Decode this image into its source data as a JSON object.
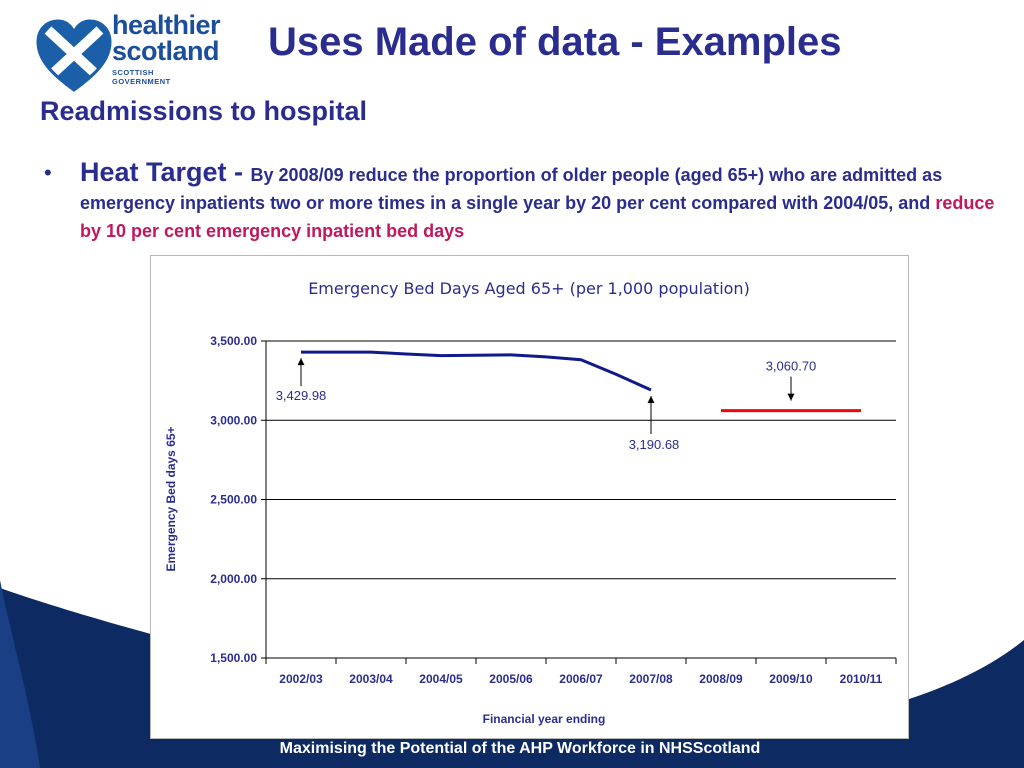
{
  "logo": {
    "line1": "healthier",
    "line2": "scotland",
    "line3": "SCOTTISH GOVERNMENT"
  },
  "slide_title": "Uses Made of data - Examples",
  "section_heading": "Readmissions to hospital",
  "bullet": {
    "lead": "Heat Target - ",
    "body": "By 2008/09 reduce the proportion of older people (aged 65+) who are admitted as emergency inpatients two or more times in a single year by 20 per cent compared with 2004/05, and ",
    "highlight": "reduce by 10 per cent emergency inpatient bed days"
  },
  "footer": "Maximising the Potential of the AHP Workforce in NHSScotland",
  "colors": {
    "title": "#2b2d8e",
    "highlight": "#c2185b",
    "swoosh": "#0d2a62",
    "series_actual": "#101a8a",
    "series_target": "#ff0000"
  },
  "chart_data": {
    "type": "line",
    "title": "Emergency Bed Days Aged 65+ (per 1,000 population)",
    "xlabel": "Financial year ending",
    "ylabel": "Emergency Bed days 65+",
    "categories": [
      "2002/03",
      "2003/04",
      "2004/05",
      "2005/06",
      "2006/07",
      "2007/08",
      "2008/09",
      "2009/10",
      "2010/11"
    ],
    "ylim": [
      1500,
      3500
    ],
    "yticks": [
      "1,500.00",
      "2,000.00",
      "2,500.00",
      "3,000.00",
      "3,500.00"
    ],
    "grid": "horizontal",
    "series": [
      {
        "color": "#101a8a",
        "x": [
          0,
          0.5,
          1,
          1.5,
          2,
          2.5,
          3,
          3.5,
          4,
          4.5,
          5
        ],
        "values": [
          3429.98,
          3430,
          3430,
          3418,
          3408,
          3410,
          3412,
          3400,
          3382,
          3290,
          3190.68
        ]
      },
      {
        "color": "#ff0000",
        "x": [
          6,
          8
        ],
        "values": [
          3060.7,
          3060.7
        ]
      }
    ],
    "annotations": [
      {
        "text": "3,429.98",
        "x": 0,
        "value": 3429.98,
        "position": "below"
      },
      {
        "text": "3,190.68",
        "x": 5,
        "value": 3190.68,
        "position": "below"
      },
      {
        "text": "3,060.70",
        "x": 7,
        "value": 3060.7,
        "position": "above"
      }
    ]
  }
}
